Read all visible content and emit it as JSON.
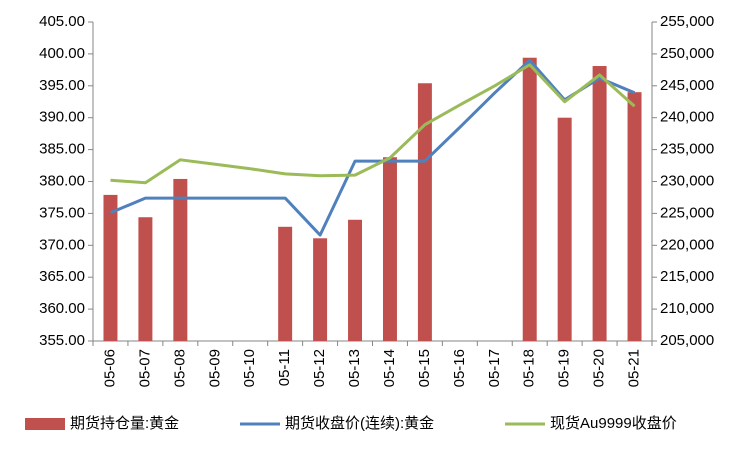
{
  "chart_data": {
    "type": "bar-line",
    "categories": [
      "05-06",
      "05-07",
      "05-08",
      "05-09",
      "05-10",
      "05-11",
      "05-12",
      "05-13",
      "05-14",
      "05-15",
      "05-16",
      "05-17",
      "05-18",
      "05-19",
      "05-20",
      "05-21"
    ],
    "series": [
      {
        "name": "期货持仓量:黄金",
        "type": "bar",
        "axis": "y2",
        "color": "#c0504d",
        "values": [
          227900,
          224400,
          230400,
          null,
          null,
          222900,
          221100,
          224000,
          233800,
          245400,
          null,
          null,
          249400,
          240000,
          248100,
          244000
        ]
      },
      {
        "name": "期货收盘价(连续):黄金",
        "type": "line",
        "axis": "y",
        "color": "#4f81bd",
        "values": [
          375.1,
          377.4,
          377.4,
          377.4,
          377.4,
          377.4,
          371.6,
          383.2,
          383.2,
          383.2,
          388.5,
          393.9,
          399.0,
          392.8,
          396.2,
          393.9
        ]
      },
      {
        "name": "现货Au9999收盘价",
        "type": "line",
        "axis": "y",
        "color": "#9bbb59",
        "values": [
          380.2,
          379.8,
          383.4,
          382.7,
          382.0,
          381.2,
          380.9,
          381.0,
          383.7,
          388.9,
          392.0,
          395.0,
          398.3,
          392.5,
          396.7,
          391.8
        ]
      }
    ],
    "ylim": [
      355,
      405
    ],
    "yticks": [
      {
        "value": 355,
        "label": "355.00"
      },
      {
        "value": 360,
        "label": "360.00"
      },
      {
        "value": 365,
        "label": "365.00"
      },
      {
        "value": 370,
        "label": "370.00"
      },
      {
        "value": 375,
        "label": "375.00"
      },
      {
        "value": 380,
        "label": "380.00"
      },
      {
        "value": 385,
        "label": "385.00"
      },
      {
        "value": 390,
        "label": "390.00"
      },
      {
        "value": 395,
        "label": "395.00"
      },
      {
        "value": 400,
        "label": "400.00"
      },
      {
        "value": 405,
        "label": "405.00"
      }
    ],
    "y2lim": [
      205000,
      255000
    ],
    "y2ticks": [
      {
        "value": 205000,
        "label": "205,000"
      },
      {
        "value": 210000,
        "label": "210,000"
      },
      {
        "value": 215000,
        "label": "215,000"
      },
      {
        "value": 220000,
        "label": "220,000"
      },
      {
        "value": 225000,
        "label": "225,000"
      },
      {
        "value": 230000,
        "label": "230,000"
      },
      {
        "value": 235000,
        "label": "235,000"
      },
      {
        "value": 240000,
        "label": "240,000"
      },
      {
        "value": 245000,
        "label": "245,000"
      },
      {
        "value": 250000,
        "label": "250,000"
      },
      {
        "value": 255000,
        "label": "255,000"
      }
    ],
    "grid": false,
    "legend": "bottom"
  }
}
